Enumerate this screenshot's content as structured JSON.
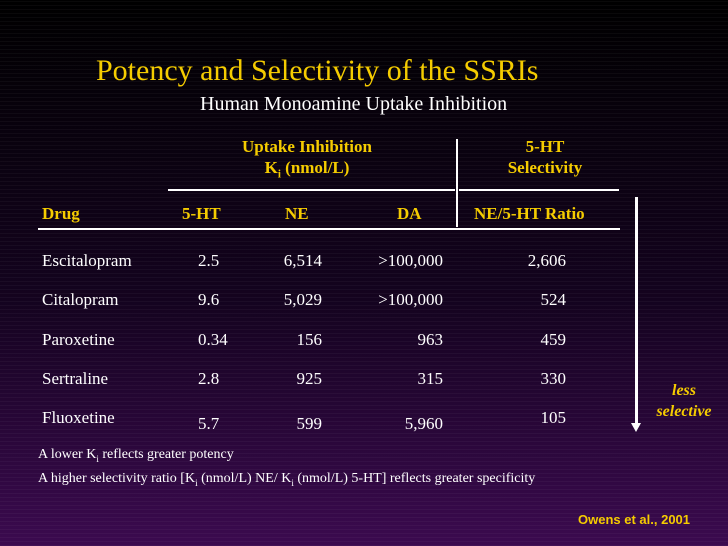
{
  "title": "Potency and Selectivity of the SSRIs",
  "subtitle": "Human Monoamine Uptake Inhibition",
  "group_headers": {
    "uptake_line1": "Uptake Inhibition",
    "uptake_line2_prefix": "K",
    "uptake_line2_sub": "i",
    "uptake_line2_suffix": " (nmol/L)",
    "selectivity_line1": "5-HT",
    "selectivity_line2": "Selectivity"
  },
  "columns": {
    "drug": "Drug",
    "ht": "5-HT",
    "ne": "NE",
    "da": "DA",
    "ratio": "NE/5-HT Ratio"
  },
  "rows": [
    {
      "drug": "Escitalopram",
      "ht": "2.5",
      "ne": "6,514",
      "da": ">100,000",
      "ratio": "2,606"
    },
    {
      "drug": "Citalopram",
      "ht": "9.6",
      "ne": "5,029",
      "da": ">100,000",
      "ratio": "524"
    },
    {
      "drug": "Paroxetine",
      "ht": "0.34",
      "ne": "156",
      "da": "963",
      "ratio": "459"
    },
    {
      "drug": "Sertraline",
      "ht": "2.8",
      "ne": "925",
      "da": "315",
      "ratio": "330"
    },
    {
      "drug": "Fluoxetine",
      "ht": "5.7",
      "ne": "599",
      "da": "5,960",
      "ratio": "105"
    }
  ],
  "arrow_label_line1": "less",
  "arrow_label_line2": "selective",
  "notes": {
    "note1_prefix": "A lower K",
    "note1_sub": "i",
    "note1_suffix": " reflects greater potency",
    "note2_part1": "A higher selectivity ratio [K",
    "note2_sub1": "i",
    "note2_part2": " (nmol/L) NE/ K",
    "note2_sub2": "i",
    "note2_part3": " (nmol/L) 5-HT] reflects greater specificity"
  },
  "citation": "Owens et al., 2001",
  "colors": {
    "accent": "#f5cc00",
    "text": "#ffffff",
    "background": "#1a0326"
  }
}
